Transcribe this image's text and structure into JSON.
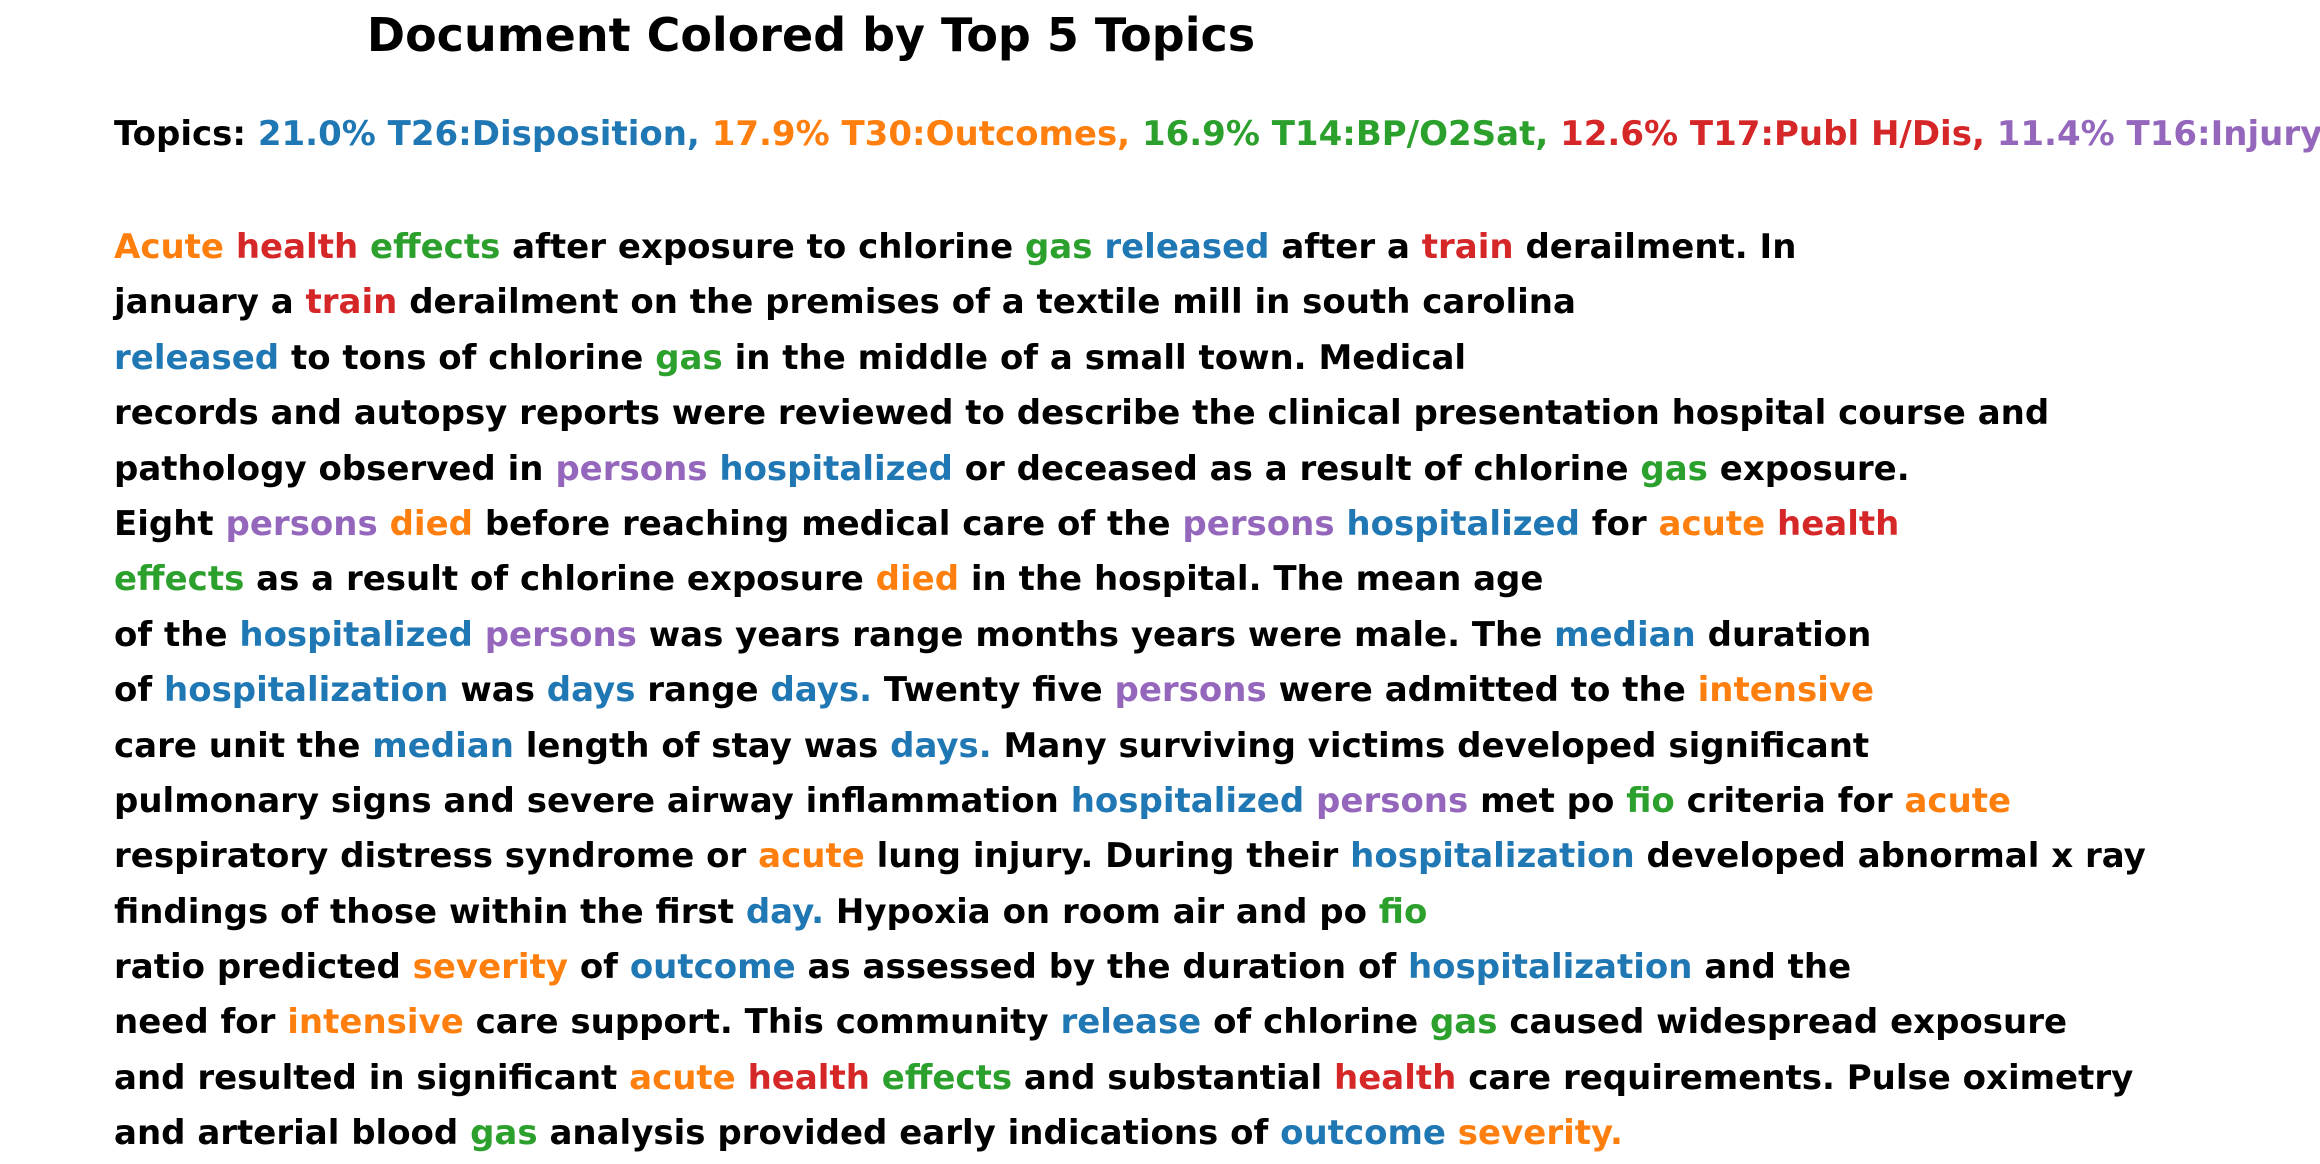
{
  "header": {
    "title": "Document Colored by Top 5 Topics"
  },
  "topics": {
    "label": "Topics:",
    "items": [
      {
        "text": "21.0% T26:Disposition,",
        "color": "#1f77b4"
      },
      {
        "text": "17.9% T30:Outcomes,",
        "color": "#ff7f0e"
      },
      {
        "text": "16.9% T14:BP/O2Sat,",
        "color": "#2ca02c"
      },
      {
        "text": "12.6% T17:Publ H/Dis,",
        "color": "#d62728"
      },
      {
        "text": "11.4% T16:Injury,",
        "color": "#9467bd"
      }
    ]
  },
  "lines": [
    [
      {
        "text": "Acute",
        "color": "#ff7f0e"
      },
      {
        "text": "health",
        "color": "#d62728"
      },
      {
        "text": "effects",
        "color": "#2ca02c"
      },
      {
        "text": "after exposure to chlorine"
      },
      {
        "text": "gas",
        "color": "#2ca02c"
      },
      {
        "text": "released",
        "color": "#1f77b4"
      },
      {
        "text": "after a"
      },
      {
        "text": "train",
        "color": "#d62728"
      },
      {
        "text": "derailment. In"
      }
    ],
    [
      {
        "text": "january a"
      },
      {
        "text": "train",
        "color": "#d62728"
      },
      {
        "text": "derailment on the premises of a textile mill in south carolina"
      }
    ],
    [
      {
        "text": "released",
        "color": "#1f77b4"
      },
      {
        "text": "to tons of chlorine"
      },
      {
        "text": "gas",
        "color": "#2ca02c"
      },
      {
        "text": "in the middle of a small town. Medical"
      }
    ],
    [
      {
        "text": "records and autopsy reports were reviewed to describe the clinical presentation hospital course and"
      }
    ],
    [
      {
        "text": "pathology observed in"
      },
      {
        "text": "persons",
        "color": "#9467bd"
      },
      {
        "text": "hospitalized",
        "color": "#1f77b4"
      },
      {
        "text": "or deceased as a result of chlorine"
      },
      {
        "text": "gas",
        "color": "#2ca02c"
      },
      {
        "text": "exposure."
      }
    ],
    [
      {
        "text": "Eight"
      },
      {
        "text": "persons",
        "color": "#9467bd"
      },
      {
        "text": "died",
        "color": "#ff7f0e"
      },
      {
        "text": "before reaching medical care of the"
      },
      {
        "text": "persons",
        "color": "#9467bd"
      },
      {
        "text": "hospitalized",
        "color": "#1f77b4"
      },
      {
        "text": "for"
      },
      {
        "text": "acute",
        "color": "#ff7f0e"
      },
      {
        "text": "health",
        "color": "#d62728"
      }
    ],
    [
      {
        "text": "effects",
        "color": "#2ca02c"
      },
      {
        "text": "as a result of chlorine exposure"
      },
      {
        "text": "died",
        "color": "#ff7f0e"
      },
      {
        "text": "in the hospital. The mean age"
      }
    ],
    [
      {
        "text": "of the"
      },
      {
        "text": "hospitalized",
        "color": "#1f77b4"
      },
      {
        "text": "persons",
        "color": "#9467bd"
      },
      {
        "text": "was years range months years were male. The"
      },
      {
        "text": "median",
        "color": "#1f77b4"
      },
      {
        "text": "duration"
      }
    ],
    [
      {
        "text": "of"
      },
      {
        "text": "hospitalization",
        "color": "#1f77b4"
      },
      {
        "text": "was"
      },
      {
        "text": "days",
        "color": "#1f77b4"
      },
      {
        "text": "range"
      },
      {
        "text": "days.",
        "color": "#1f77b4"
      },
      {
        "text": "Twenty five"
      },
      {
        "text": "persons",
        "color": "#9467bd"
      },
      {
        "text": "were admitted to the"
      },
      {
        "text": "intensive",
        "color": "#ff7f0e"
      }
    ],
    [
      {
        "text": "care unit the"
      },
      {
        "text": "median",
        "color": "#1f77b4"
      },
      {
        "text": "length of stay was"
      },
      {
        "text": "days.",
        "color": "#1f77b4"
      },
      {
        "text": "Many surviving victims developed significant"
      }
    ],
    [
      {
        "text": "pulmonary signs and severe airway inflammation"
      },
      {
        "text": "hospitalized",
        "color": "#1f77b4"
      },
      {
        "text": "persons",
        "color": "#9467bd"
      },
      {
        "text": "met po"
      },
      {
        "text": "fio",
        "color": "#2ca02c"
      },
      {
        "text": "criteria for"
      },
      {
        "text": "acute",
        "color": "#ff7f0e"
      }
    ],
    [
      {
        "text": "respiratory distress syndrome or"
      },
      {
        "text": "acute",
        "color": "#ff7f0e"
      },
      {
        "text": "lung injury. During their"
      },
      {
        "text": "hospitalization",
        "color": "#1f77b4"
      },
      {
        "text": "developed abnormal x ray"
      }
    ],
    [
      {
        "text": "findings of those within the first"
      },
      {
        "text": "day.",
        "color": "#1f77b4"
      },
      {
        "text": "Hypoxia on room air and po"
      },
      {
        "text": "fio",
        "color": "#2ca02c"
      }
    ],
    [
      {
        "text": "ratio predicted"
      },
      {
        "text": "severity",
        "color": "#ff7f0e"
      },
      {
        "text": "of"
      },
      {
        "text": "outcome",
        "color": "#1f77b4"
      },
      {
        "text": "as assessed by the duration of"
      },
      {
        "text": "hospitalization",
        "color": "#1f77b4"
      },
      {
        "text": "and the"
      }
    ],
    [
      {
        "text": "need for"
      },
      {
        "text": "intensive",
        "color": "#ff7f0e"
      },
      {
        "text": "care support. This community"
      },
      {
        "text": "release",
        "color": "#1f77b4"
      },
      {
        "text": "of chlorine"
      },
      {
        "text": "gas",
        "color": "#2ca02c"
      },
      {
        "text": "caused widespread exposure"
      }
    ],
    [
      {
        "text": "and resulted in significant"
      },
      {
        "text": "acute",
        "color": "#ff7f0e"
      },
      {
        "text": "health",
        "color": "#d62728"
      },
      {
        "text": "effects",
        "color": "#2ca02c"
      },
      {
        "text": "and substantial"
      },
      {
        "text": "health",
        "color": "#d62728"
      },
      {
        "text": "care requirements. Pulse oximetry"
      }
    ],
    [
      {
        "text": "and arterial blood"
      },
      {
        "text": "gas",
        "color": "#2ca02c"
      },
      {
        "text": "analysis provided early indications of"
      },
      {
        "text": "outcome",
        "color": "#1f77b4"
      },
      {
        "text": "severity.",
        "color": "#ff7f0e"
      }
    ]
  ]
}
